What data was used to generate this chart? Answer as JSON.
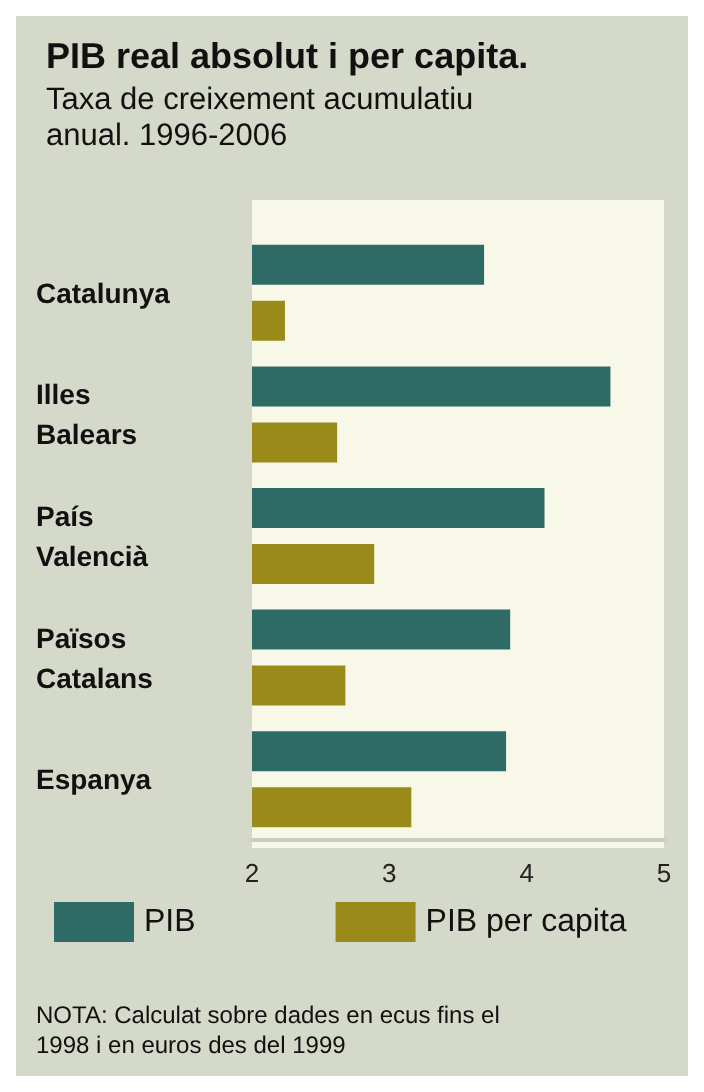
{
  "chart_data": {
    "type": "bar",
    "orientation": "horizontal",
    "title": "PIB real absolut i per capita.",
    "subtitle": "Taxa de creixement acumulatiu anual. 1996-2006",
    "categories": [
      "Catalunya",
      "Illes Balears",
      "País Valencià",
      "Països Catalans",
      "Espanya"
    ],
    "series": [
      {
        "name": "PIB",
        "color": "#2e6b66",
        "values": [
          3.69,
          4.61,
          4.13,
          3.88,
          3.85
        ]
      },
      {
        "name": "PIB per capita",
        "color": "#9a8a1a",
        "values": [
          2.24,
          2.62,
          2.89,
          2.68,
          3.16
        ]
      }
    ],
    "xlim": [
      2,
      5
    ],
    "xticks": [
      2,
      3,
      4,
      5
    ],
    "legend": "bottom",
    "annotations": [
      "NOTA: Calculat sobre dades en ecus fins el 1998 i en euros des del 1999"
    ]
  }
}
